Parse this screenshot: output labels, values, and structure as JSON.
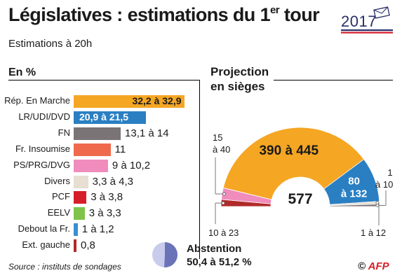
{
  "header": {
    "title_main": "Législatives : estimations du 1",
    "title_sup": "er",
    "title_tail": " tour",
    "year_badge": "2017",
    "subtitle": "Estimations à 20h"
  },
  "colors": {
    "lrem": "#f5a623",
    "lr": "#2a7fc3",
    "fn": "#7a7476",
    "fi": "#ef6a4c",
    "ps": "#f08dbd",
    "divers": "#e6dfd2",
    "pcf": "#d61e2a",
    "eelv": "#7fc34a",
    "dlf": "#3a8fd0",
    "extg": "#b02a2a",
    "abst_light": "#c8cbeb",
    "abst_dark": "#6a72b8"
  },
  "chart_data": [
    {
      "type": "bar",
      "title": "En %",
      "orientation": "horizontal",
      "categories": [
        "Rép. En Marche",
        "LR/UDI/DVD",
        "FN",
        "Fr. Insoumise",
        "PS/PRG/DVG",
        "Divers",
        "PCF",
        "EELV",
        "Debout la Fr.",
        "Ext. gauche"
      ],
      "labels": [
        "32,2 à 32,9",
        "20,9 à 21,5",
        "13,1 à 14",
        "11",
        "9 à 10,2",
        "3,3 à 4,3",
        "3 à 3,8",
        "3 à 3,3",
        "1 à 1,2",
        "0,8"
      ],
      "low": [
        32.2,
        20.9,
        13.1,
        11,
        9,
        3.3,
        3,
        3,
        1,
        0.8
      ],
      "high": [
        32.9,
        21.5,
        14,
        11,
        10.2,
        4.3,
        3.8,
        3.3,
        1.2,
        0.8
      ],
      "color_keys": [
        "lrem",
        "lr",
        "fn",
        "fi",
        "ps",
        "divers",
        "pcf",
        "eelv",
        "dlf",
        "extg"
      ],
      "xlim": [
        0,
        33
      ]
    },
    {
      "type": "pie",
      "subtype": "hemicycle",
      "title": [
        "Projection",
        "en sièges"
      ],
      "total": 577,
      "segments": [
        {
          "label": "10 à 23",
          "low": 10,
          "high": 23,
          "color_key": "extg"
        },
        {
          "label": "15 à 40",
          "low": 15,
          "high": 40,
          "color_key": "ps"
        },
        {
          "label": "390 à 445",
          "low": 390,
          "high": 445,
          "color_key": "lrem"
        },
        {
          "label": "80 à 132",
          "low": 80,
          "high": 132,
          "color_key": "lr"
        },
        {
          "label": "1 à 12",
          "low": 1,
          "high": 12,
          "color_key": "divers"
        },
        {
          "label": "1 à 10",
          "low": 1,
          "high": 10,
          "color_key": "fn"
        }
      ],
      "outer_labels": {
        "left_top": [
          "15",
          "à 40"
        ],
        "left_bottom": "10 à 23",
        "right_top": [
          "1",
          "à 10"
        ],
        "right_bottom": "1 à 12"
      }
    }
  ],
  "abstention": {
    "label": "Abstention",
    "value": "50,4 à 51,2 %",
    "fraction": 0.508
  },
  "footer": {
    "source": "Source : instituts de sondages",
    "credit_prefix": "© ",
    "credit": "AFP"
  }
}
